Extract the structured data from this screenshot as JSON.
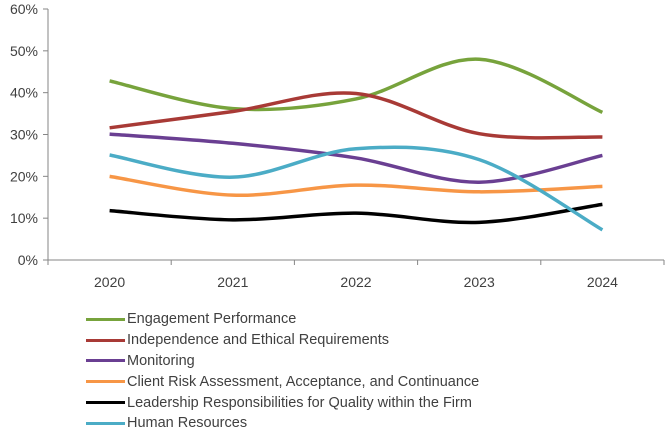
{
  "chart_data": {
    "type": "line",
    "x": [
      "2020",
      "2021",
      "2022",
      "2023",
      "2024"
    ],
    "ylim": [
      0,
      60
    ],
    "yticks": [
      "0%",
      "10%",
      "20%",
      "30%",
      "40%",
      "50%",
      "60%"
    ],
    "ytick_values": [
      0,
      10,
      20,
      30,
      40,
      50,
      60
    ],
    "grid": false,
    "legend_position": "bottom",
    "series": [
      {
        "name": "Engagement Performance",
        "color": "#77a33c",
        "values": [
          42.8,
          36.2,
          38.5,
          48.0,
          35.3
        ]
      },
      {
        "name": "Independence and Ethical Requirements",
        "color": "#a83a36",
        "values": [
          31.6,
          35.5,
          39.8,
          30.2,
          29.4
        ]
      },
      {
        "name": "Monitoring",
        "color": "#6a3f92",
        "values": [
          30.1,
          27.9,
          24.4,
          18.6,
          25.0
        ]
      },
      {
        "name": "Client Risk Assessment, Acceptance, and Continuance",
        "color": "#f79646",
        "values": [
          20.0,
          15.5,
          17.9,
          16.3,
          17.6
        ]
      },
      {
        "name": "Leadership Responsibilities for Quality within the Firm",
        "color": "#000000",
        "values": [
          11.8,
          9.6,
          11.2,
          9.0,
          13.3
        ]
      },
      {
        "name": "Human Resources",
        "color": "#4bacc6",
        "values": [
          25.1,
          19.8,
          26.6,
          24.0,
          7.2
        ]
      }
    ]
  }
}
